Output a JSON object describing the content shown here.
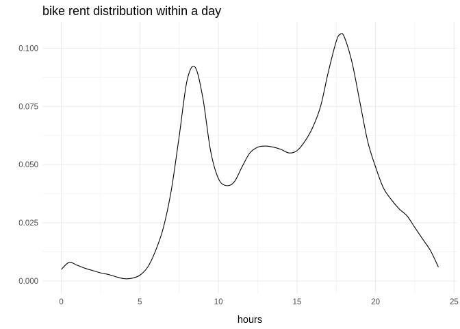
{
  "chart_data": {
    "type": "line",
    "title": "bike rent distribution within a day",
    "xlabel": "hours",
    "ylabel": "",
    "xlim": [
      -1.2,
      25.2
    ],
    "ylim": [
      -0.0053,
      0.1113
    ],
    "x_ticks": [
      0,
      5,
      10,
      15,
      20,
      25
    ],
    "x_tick_labels": [
      "0",
      "5",
      "10",
      "15",
      "20",
      "25"
    ],
    "y_ticks": [
      0.0,
      0.025,
      0.05,
      0.075,
      0.1
    ],
    "y_tick_labels": [
      "0.000",
      "0.025",
      "0.050",
      "0.075",
      "0.100"
    ],
    "grid": true,
    "legend": "none",
    "line_color": "#000000",
    "grid_color": "#ebebeb",
    "series": [
      {
        "x": [
          0,
          0.5,
          1,
          1.5,
          2,
          2.5,
          3,
          3.5,
          4,
          4.5,
          5,
          5.5,
          6,
          6.5,
          7,
          7.5,
          8,
          8.5,
          9,
          9.5,
          10,
          10.5,
          11,
          11.5,
          12,
          12.5,
          13,
          13.5,
          14,
          14.5,
          15,
          15.5,
          16,
          16.5,
          17,
          17.5,
          17.75,
          18,
          18.5,
          19,
          19.5,
          20,
          20.5,
          21,
          21.5,
          22,
          22.5,
          23,
          23.5,
          24
        ],
        "y": [
          0.005,
          0.008,
          0.0068,
          0.0055,
          0.0045,
          0.0035,
          0.0028,
          0.0018,
          0.001,
          0.0012,
          0.0025,
          0.006,
          0.013,
          0.023,
          0.039,
          0.062,
          0.086,
          0.092,
          0.079,
          0.056,
          0.044,
          0.041,
          0.0425,
          0.049,
          0.055,
          0.0575,
          0.058,
          0.0575,
          0.0565,
          0.055,
          0.056,
          0.06,
          0.066,
          0.075,
          0.09,
          0.103,
          0.106,
          0.105,
          0.094,
          0.077,
          0.06,
          0.049,
          0.04,
          0.035,
          0.031,
          0.028,
          0.023,
          0.018,
          0.013,
          0.006
        ]
      }
    ]
  }
}
